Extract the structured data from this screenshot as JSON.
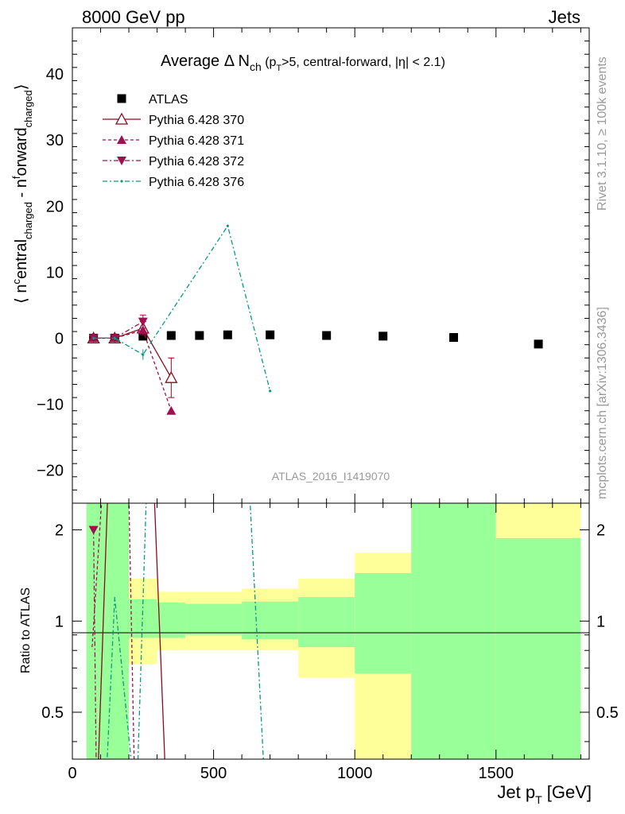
{
  "header": {
    "left": "8000 GeV pp",
    "right": "Jets"
  },
  "side_labels": {
    "rivet": "Rivet 3.1.10, ≥ 100k events",
    "mcplots": "mcplots.cern.ch [arXiv:1306.3436]"
  },
  "chart_data": [
    {
      "type": "line",
      "title_parts": {
        "main": "Average Δ N",
        "sub_ch": "ch",
        "open": " (p",
        "sub_T": "T",
        "rest": ">5, central-forward, |η| < 2.1)"
      },
      "ylabel_parts": {
        "a": "⟨ n",
        "sup_c": "c",
        "b": "entral",
        "sub1": "charged",
        "c": " - n",
        "sup_f": "f",
        "d": "orward",
        "sub2": "charged",
        "e": "⟩"
      },
      "watermark": "ATLAS_2016_I1419070",
      "xlim": [
        0,
        1830
      ],
      "ylim": [
        -25,
        47
      ],
      "yticks": [
        -20,
        -10,
        0,
        10,
        20,
        30,
        40
      ],
      "xticks": [
        0,
        500,
        1000,
        1500
      ],
      "legend_placement": "top-left",
      "series": [
        {
          "name": "ATLAS",
          "color": "#000000",
          "marker": "square",
          "dash": "",
          "x": [
            75,
            150,
            250,
            350,
            450,
            550,
            700,
            900,
            1100,
            1350,
            1650
          ],
          "y": [
            0.0,
            0.0,
            0.3,
            0.4,
            0.4,
            0.5,
            0.5,
            0.4,
            0.3,
            0.1,
            -0.9
          ]
        },
        {
          "name": "Pythia 6.428 370",
          "color": "#8b0a1e",
          "marker": "open-triangle-up",
          "dash": "",
          "x": [
            75,
            150,
            250,
            350
          ],
          "y": [
            0.0,
            0.0,
            1.5,
            -6.0
          ],
          "yerr": [
            0.2,
            0.2,
            1.0,
            3.0
          ]
        },
        {
          "name": "Pythia 6.428 371",
          "color": "#a0104f",
          "marker": "triangle-up",
          "dash": "4,3",
          "x": [
            75,
            150,
            250,
            350
          ],
          "y": [
            0.0,
            0.0,
            1.2,
            -11.0
          ],
          "yerr": [
            0.2,
            0.2,
            0.5,
            0.4
          ]
        },
        {
          "name": "Pythia 6.428 372",
          "color": "#a0104f",
          "marker": "triangle-down",
          "dash": "6,3,2,3",
          "x": [
            75,
            150,
            250
          ],
          "y": [
            0.0,
            0.0,
            2.5
          ],
          "yerr": [
            0.2,
            0.2,
            1.0
          ]
        },
        {
          "name": "Pythia 6.428 376",
          "color": "#0a9a80",
          "marker": "dot",
          "dash": "6,3,2,3",
          "x": [
            75,
            150,
            250,
            550,
            700
          ],
          "y": [
            0.0,
            0.0,
            -2.5,
            17.0,
            -8.0
          ],
          "yerr": [
            0.2,
            0.2,
            0.8,
            0.2,
            0.2
          ]
        }
      ]
    },
    {
      "type": "line",
      "ylabel": "Ratio to ATLAS",
      "xlabel_parts": {
        "main": "Jet p",
        "sub_T": "T",
        "unit": " [GeV]"
      },
      "xlim": [
        0,
        1830
      ],
      "ylim_log": [
        0.35,
        2.45
      ],
      "yticks": [
        0.5,
        1,
        2
      ],
      "xticks": [
        0,
        500,
        1000,
        1500
      ],
      "bands": [
        {
          "x0": 50,
          "x1": 100,
          "y_lo": 0.3,
          "y_hi": 2.6,
          "green_lo": 0.3,
          "green_hi": 2.6
        },
        {
          "x0": 100,
          "x1": 200,
          "y_lo": 0.3,
          "y_hi": 2.6,
          "green_lo": 0.3,
          "green_hi": 2.6
        },
        {
          "x0": 200,
          "x1": 300,
          "y_lo": 0.72,
          "y_hi": 1.38,
          "green_lo": 0.88,
          "green_hi": 1.18
        },
        {
          "x0": 300,
          "x1": 400,
          "y_lo": 0.8,
          "y_hi": 1.25,
          "green_lo": 0.88,
          "green_hi": 1.15
        },
        {
          "x0": 400,
          "x1": 500,
          "y_lo": 0.8,
          "y_hi": 1.25,
          "green_lo": 0.9,
          "green_hi": 1.14
        },
        {
          "x0": 500,
          "x1": 600,
          "y_lo": 0.8,
          "y_hi": 1.25,
          "green_lo": 0.9,
          "green_hi": 1.14
        },
        {
          "x0": 600,
          "x1": 800,
          "y_lo": 0.8,
          "y_hi": 1.28,
          "green_lo": 0.87,
          "green_hi": 1.16
        },
        {
          "x0": 800,
          "x1": 1000,
          "y_lo": 0.65,
          "y_hi": 1.38,
          "green_lo": 0.82,
          "green_hi": 1.2
        },
        {
          "x0": 1000,
          "x1": 1200,
          "y_lo": 0.3,
          "y_hi": 1.68,
          "green_lo": 0.67,
          "green_hi": 1.44
        },
        {
          "x0": 1200,
          "x1": 1500,
          "y_lo": 0.3,
          "y_hi": 2.6,
          "green_lo": 0.3,
          "green_hi": 2.6
        },
        {
          "x0": 1500,
          "x1": 1800,
          "y_lo": 0.3,
          "y_hi": 2.6,
          "green_lo": 0.3,
          "green_hi": 1.88
        }
      ],
      "band_colors": {
        "yellow": "#ffff99",
        "green": "#99ff99"
      },
      "ratio_lines": [
        {
          "name": "Pythia 6.428 370",
          "color": "#8b0a1e",
          "dash": "",
          "x": [
            90,
            125,
            290,
            330
          ],
          "y": [
            0.3,
            2.6,
            2.6,
            0.3
          ]
        },
        {
          "name": "Pythia 6.428 371",
          "color": "#a0104f",
          "dash": "4,3",
          "x": [
            70,
            105,
            200,
            220
          ],
          "y": [
            0.82,
            2.6,
            2.6,
            0.3
          ]
        },
        {
          "name": "Pythia 6.428 372",
          "color": "#a0104f",
          "dash": "6,3,2,3",
          "x": [
            75,
            85,
            150
          ],
          "y": [
            2.0,
            0.3,
            0.3
          ],
          "marker_at": {
            "x": 75,
            "y": 2.0
          }
        },
        {
          "name": "Pythia 6.428 376",
          "color": "#0a9a80",
          "dash": "6,3,2,3",
          "x": [
            120,
            150,
            215,
            230,
            262,
            628,
            680
          ],
          "y": [
            0.3,
            1.2,
            0.3,
            0.3,
            2.6,
            2.6,
            0.3
          ]
        }
      ]
    }
  ]
}
